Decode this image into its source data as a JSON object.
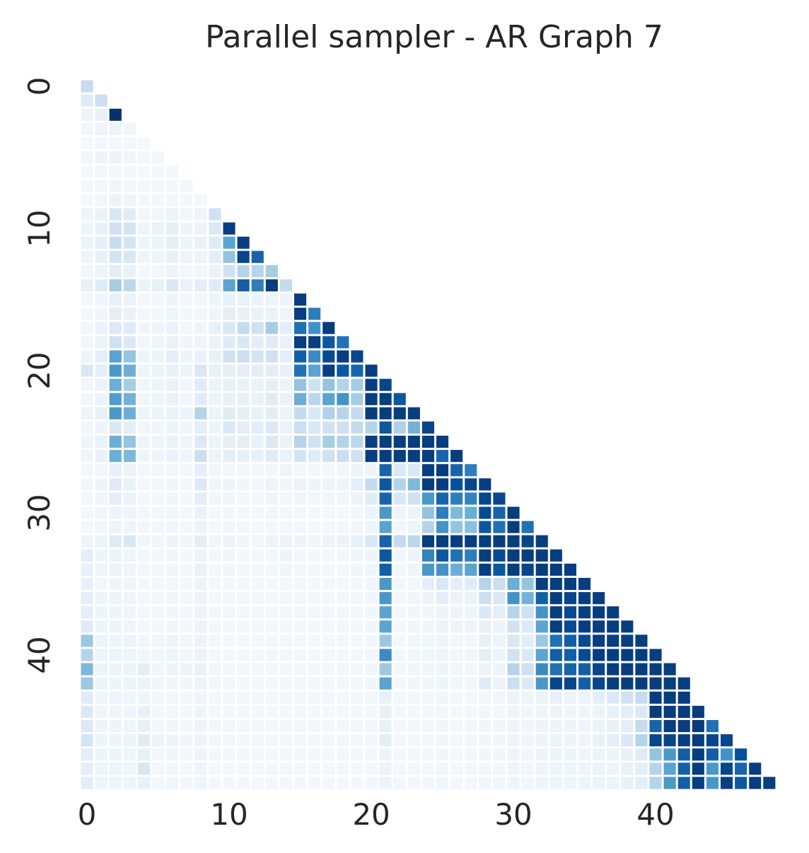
{
  "chart_data": {
    "type": "heatmap",
    "title": "Parallel sampler - AR Graph 7",
    "xlabel": "",
    "ylabel": "",
    "n": 49,
    "mask": "lower-triangle including diagonal",
    "colormap": "Blues",
    "color_range": [
      0,
      1
    ],
    "x_ticks": [
      0,
      10,
      20,
      30,
      40
    ],
    "y_ticks": [
      0,
      10,
      20,
      30,
      40
    ],
    "grid": false,
    "legend": "none",
    "colors": {
      "background": "#ffffff",
      "cell_gap": "#ffffff",
      "text": "#262626",
      "blues_scale": [
        "#f7fbff",
        "#deebf7",
        "#c6dbef",
        "#9ecae1",
        "#6baed6",
        "#4292c6",
        "#2171b5",
        "#08519c",
        "#08306b"
      ]
    },
    "rows": [
      [
        0.25
      ],
      [
        0.12,
        0.22
      ],
      [
        0.06,
        0.08,
        1.0
      ],
      [
        0.04,
        0.05,
        0.06,
        0.04
      ],
      [
        0.02,
        0.03,
        0.03,
        0.03,
        0.02
      ],
      [
        0.04,
        0.05,
        0.06,
        0.05,
        0.03,
        0.03
      ],
      [
        0.02,
        0.03,
        0.03,
        0.03,
        0.02,
        0.02,
        0.03
      ],
      [
        0.03,
        0.04,
        0.05,
        0.04,
        0.03,
        0.03,
        0.03,
        0.03
      ],
      [
        0.03,
        0.04,
        0.06,
        0.05,
        0.03,
        0.03,
        0.04,
        0.03,
        0.03
      ],
      [
        0.05,
        0.07,
        0.16,
        0.12,
        0.04,
        0.04,
        0.06,
        0.04,
        0.05,
        0.2
      ],
      [
        0.05,
        0.08,
        0.2,
        0.18,
        0.05,
        0.07,
        0.09,
        0.05,
        0.06,
        0.14,
        0.95
      ],
      [
        0.06,
        0.09,
        0.24,
        0.18,
        0.05,
        0.06,
        0.1,
        0.05,
        0.07,
        0.12,
        0.55,
        0.95
      ],
      [
        0.05,
        0.08,
        0.18,
        0.16,
        0.05,
        0.05,
        0.08,
        0.05,
        0.06,
        0.1,
        0.4,
        0.92,
        0.8
      ],
      [
        0.04,
        0.05,
        0.1,
        0.08,
        0.03,
        0.03,
        0.05,
        0.03,
        0.04,
        0.07,
        0.2,
        0.3,
        0.3,
        0.35
      ],
      [
        0.08,
        0.12,
        0.35,
        0.28,
        0.06,
        0.08,
        0.14,
        0.07,
        0.1,
        0.12,
        0.55,
        0.82,
        0.7,
        0.95,
        0.25
      ],
      [
        0.03,
        0.04,
        0.08,
        0.06,
        0.03,
        0.03,
        0.05,
        0.03,
        0.04,
        0.05,
        0.08,
        0.07,
        0.06,
        0.06,
        0.05,
        0.95
      ],
      [
        0.03,
        0.04,
        0.1,
        0.07,
        0.03,
        0.03,
        0.05,
        0.03,
        0.04,
        0.05,
        0.1,
        0.08,
        0.08,
        0.07,
        0.05,
        0.95,
        0.7
      ],
      [
        0.04,
        0.06,
        0.14,
        0.12,
        0.04,
        0.05,
        0.07,
        0.04,
        0.05,
        0.08,
        0.16,
        0.25,
        0.2,
        0.35,
        0.1,
        0.75,
        0.62,
        0.95
      ],
      [
        0.04,
        0.06,
        0.2,
        0.14,
        0.04,
        0.05,
        0.07,
        0.04,
        0.05,
        0.07,
        0.12,
        0.15,
        0.1,
        0.12,
        0.07,
        0.95,
        0.95,
        0.85,
        0.75
      ],
      [
        0.05,
        0.1,
        0.55,
        0.4,
        0.05,
        0.06,
        0.1,
        0.05,
        0.07,
        0.08,
        0.2,
        0.22,
        0.18,
        0.2,
        0.1,
        0.82,
        0.65,
        0.9,
        0.95,
        0.92
      ],
      [
        0.15,
        0.1,
        0.6,
        0.5,
        0.05,
        0.06,
        0.08,
        0.05,
        0.15,
        0.08,
        0.1,
        0.1,
        0.1,
        0.1,
        0.08,
        0.75,
        0.55,
        0.95,
        0.85,
        0.8,
        0.95
      ],
      [
        0.04,
        0.06,
        0.5,
        0.35,
        0.04,
        0.05,
        0.07,
        0.04,
        0.12,
        0.06,
        0.08,
        0.07,
        0.07,
        0.1,
        0.06,
        0.4,
        0.2,
        0.4,
        0.3,
        0.35,
        0.95,
        0.92
      ],
      [
        0.04,
        0.06,
        0.58,
        0.48,
        0.04,
        0.05,
        0.07,
        0.04,
        0.12,
        0.06,
        0.08,
        0.08,
        0.07,
        0.12,
        0.07,
        0.5,
        0.28,
        0.55,
        0.62,
        0.35,
        0.95,
        0.95,
        0.85
      ],
      [
        0.05,
        0.08,
        0.6,
        0.5,
        0.05,
        0.05,
        0.07,
        0.05,
        0.3,
        0.06,
        0.12,
        0.1,
        0.08,
        0.1,
        0.06,
        0.25,
        0.15,
        0.32,
        0.3,
        0.25,
        0.95,
        0.95,
        0.95,
        0.95
      ],
      [
        0.04,
        0.05,
        0.14,
        0.1,
        0.04,
        0.04,
        0.05,
        0.04,
        0.1,
        0.05,
        0.14,
        0.1,
        0.1,
        0.14,
        0.06,
        0.22,
        0.15,
        0.2,
        0.2,
        0.25,
        0.3,
        0.85,
        0.32,
        0.48,
        0.92
      ],
      [
        0.05,
        0.07,
        0.5,
        0.4,
        0.05,
        0.05,
        0.07,
        0.05,
        0.14,
        0.06,
        0.1,
        0.1,
        0.08,
        0.14,
        0.07,
        0.3,
        0.2,
        0.35,
        0.3,
        0.28,
        0.95,
        0.95,
        0.95,
        0.95,
        0.95,
        0.95
      ],
      [
        0.05,
        0.07,
        0.5,
        0.45,
        0.05,
        0.05,
        0.07,
        0.05,
        0.22,
        0.06,
        0.1,
        0.08,
        0.08,
        0.12,
        0.07,
        0.18,
        0.12,
        0.2,
        0.22,
        0.2,
        0.95,
        0.95,
        0.95,
        0.95,
        0.95,
        0.8,
        0.95
      ],
      [
        0.03,
        0.04,
        0.08,
        0.06,
        0.03,
        0.03,
        0.04,
        0.03,
        0.1,
        0.04,
        0.04,
        0.03,
        0.03,
        0.04,
        0.05,
        0.03,
        0.03,
        0.03,
        0.04,
        0.05,
        0.05,
        0.8,
        0.15,
        0.15,
        0.95,
        0.95,
        0.8,
        0.7
      ],
      [
        0.04,
        0.05,
        0.12,
        0.08,
        0.03,
        0.03,
        0.04,
        0.03,
        0.14,
        0.04,
        0.05,
        0.04,
        0.04,
        0.06,
        0.04,
        0.06,
        0.05,
        0.06,
        0.05,
        0.1,
        0.25,
        0.85,
        0.3,
        0.45,
        0.95,
        0.95,
        0.88,
        0.92,
        0.95
      ],
      [
        0.03,
        0.04,
        0.1,
        0.06,
        0.03,
        0.03,
        0.04,
        0.03,
        0.1,
        0.04,
        0.04,
        0.03,
        0.03,
        0.05,
        0.03,
        0.04,
        0.03,
        0.04,
        0.04,
        0.06,
        0.12,
        0.8,
        0.15,
        0.2,
        0.6,
        0.8,
        0.7,
        0.68,
        0.92,
        0.92
      ],
      [
        0.03,
        0.04,
        0.06,
        0.05,
        0.03,
        0.03,
        0.04,
        0.03,
        0.08,
        0.03,
        0.04,
        0.03,
        0.03,
        0.04,
        0.03,
        0.03,
        0.03,
        0.03,
        0.03,
        0.04,
        0.06,
        0.6,
        0.05,
        0.06,
        0.4,
        0.7,
        0.45,
        0.5,
        0.9,
        0.8,
        0.95
      ],
      [
        0.03,
        0.04,
        0.06,
        0.05,
        0.03,
        0.03,
        0.04,
        0.03,
        0.06,
        0.03,
        0.04,
        0.03,
        0.03,
        0.03,
        0.03,
        0.03,
        0.03,
        0.03,
        0.03,
        0.04,
        0.05,
        0.55,
        0.04,
        0.05,
        0.3,
        0.62,
        0.4,
        0.42,
        0.85,
        0.75,
        0.95,
        0.75
      ],
      [
        0.05,
        0.06,
        0.12,
        0.15,
        0.04,
        0.04,
        0.05,
        0.04,
        0.1,
        0.04,
        0.05,
        0.04,
        0.04,
        0.06,
        0.06,
        0.05,
        0.04,
        0.05,
        0.06,
        0.08,
        0.15,
        0.8,
        0.25,
        0.28,
        0.95,
        0.95,
        0.95,
        0.95,
        0.95,
        0.95,
        0.95,
        0.92,
        0.95
      ],
      [
        0.1,
        0.05,
        0.06,
        0.05,
        0.03,
        0.03,
        0.04,
        0.03,
        0.06,
        0.03,
        0.04,
        0.03,
        0.03,
        0.04,
        0.05,
        0.03,
        0.03,
        0.03,
        0.03,
        0.04,
        0.05,
        0.85,
        0.04,
        0.05,
        0.68,
        0.85,
        0.75,
        0.7,
        0.95,
        0.9,
        0.95,
        0.95,
        0.95,
        0.95
      ],
      [
        0.08,
        0.05,
        0.06,
        0.05,
        0.03,
        0.03,
        0.04,
        0.03,
        0.08,
        0.03,
        0.04,
        0.03,
        0.03,
        0.04,
        0.04,
        0.03,
        0.03,
        0.03,
        0.03,
        0.04,
        0.05,
        0.82,
        0.04,
        0.05,
        0.6,
        0.62,
        0.5,
        0.55,
        0.95,
        0.85,
        0.95,
        0.92,
        0.95,
        0.95,
        0.95
      ],
      [
        0.08,
        0.04,
        0.05,
        0.05,
        0.03,
        0.03,
        0.04,
        0.03,
        0.06,
        0.03,
        0.03,
        0.03,
        0.03,
        0.03,
        0.04,
        0.03,
        0.03,
        0.03,
        0.03,
        0.03,
        0.04,
        0.6,
        0.03,
        0.04,
        0.1,
        0.15,
        0.1,
        0.12,
        0.3,
        0.22,
        0.5,
        0.4,
        0.95,
        0.95,
        0.95,
        0.95
      ],
      [
        0.1,
        0.05,
        0.05,
        0.05,
        0.03,
        0.03,
        0.04,
        0.03,
        0.06,
        0.03,
        0.03,
        0.03,
        0.03,
        0.03,
        0.03,
        0.03,
        0.03,
        0.03,
        0.03,
        0.03,
        0.04,
        0.6,
        0.03,
        0.04,
        0.05,
        0.1,
        0.06,
        0.06,
        0.22,
        0.15,
        0.62,
        0.48,
        0.82,
        0.95,
        0.92,
        0.95,
        0.95
      ],
      [
        0.1,
        0.05,
        0.05,
        0.05,
        0.03,
        0.03,
        0.04,
        0.03,
        0.06,
        0.03,
        0.03,
        0.03,
        0.03,
        0.03,
        0.03,
        0.03,
        0.03,
        0.03,
        0.03,
        0.03,
        0.04,
        0.55,
        0.03,
        0.04,
        0.04,
        0.06,
        0.05,
        0.05,
        0.14,
        0.1,
        0.3,
        0.2,
        0.62,
        0.95,
        0.9,
        0.95,
        0.95,
        0.95
      ],
      [
        0.12,
        0.05,
        0.05,
        0.05,
        0.03,
        0.03,
        0.04,
        0.03,
        0.06,
        0.03,
        0.03,
        0.03,
        0.03,
        0.03,
        0.03,
        0.03,
        0.03,
        0.03,
        0.03,
        0.03,
        0.04,
        0.55,
        0.03,
        0.04,
        0.04,
        0.06,
        0.05,
        0.05,
        0.08,
        0.06,
        0.2,
        0.14,
        0.55,
        0.95,
        0.9,
        0.95,
        0.95,
        0.95,
        0.95
      ],
      [
        0.38,
        0.06,
        0.05,
        0.06,
        0.04,
        0.04,
        0.05,
        0.04,
        0.06,
        0.03,
        0.03,
        0.03,
        0.03,
        0.03,
        0.03,
        0.03,
        0.03,
        0.03,
        0.03,
        0.03,
        0.04,
        0.38,
        0.03,
        0.04,
        0.04,
        0.05,
        0.04,
        0.04,
        0.08,
        0.05,
        0.16,
        0.1,
        0.38,
        0.75,
        0.82,
        0.9,
        0.95,
        0.95,
        0.95,
        0.95
      ],
      [
        0.3,
        0.06,
        0.06,
        0.06,
        0.04,
        0.04,
        0.05,
        0.04,
        0.06,
        0.03,
        0.03,
        0.03,
        0.03,
        0.03,
        0.03,
        0.03,
        0.03,
        0.03,
        0.03,
        0.03,
        0.04,
        0.65,
        0.03,
        0.04,
        0.04,
        0.05,
        0.04,
        0.04,
        0.1,
        0.06,
        0.2,
        0.15,
        0.55,
        0.82,
        0.82,
        0.9,
        0.95,
        0.95,
        0.95,
        0.95,
        0.95
      ],
      [
        0.45,
        0.06,
        0.06,
        0.06,
        0.1,
        0.04,
        0.05,
        0.05,
        0.08,
        0.04,
        0.03,
        0.03,
        0.03,
        0.03,
        0.03,
        0.03,
        0.03,
        0.03,
        0.03,
        0.03,
        0.04,
        0.38,
        0.03,
        0.04,
        0.04,
        0.05,
        0.04,
        0.04,
        0.06,
        0.05,
        0.3,
        0.2,
        0.65,
        0.75,
        0.8,
        0.82,
        0.92,
        0.95,
        0.95,
        0.95,
        0.95,
        0.95
      ],
      [
        0.38,
        0.06,
        0.05,
        0.06,
        0.06,
        0.04,
        0.04,
        0.04,
        0.06,
        0.03,
        0.03,
        0.03,
        0.03,
        0.03,
        0.03,
        0.03,
        0.03,
        0.03,
        0.03,
        0.03,
        0.04,
        0.55,
        0.03,
        0.04,
        0.04,
        0.05,
        0.04,
        0.04,
        0.12,
        0.06,
        0.22,
        0.14,
        0.6,
        0.92,
        0.92,
        0.82,
        0.92,
        0.95,
        0.95,
        0.95,
        0.95,
        0.95,
        0.95
      ],
      [
        0.12,
        0.05,
        0.05,
        0.05,
        0.06,
        0.03,
        0.04,
        0.03,
        0.05,
        0.03,
        0.03,
        0.03,
        0.03,
        0.03,
        0.03,
        0.03,
        0.03,
        0.03,
        0.03,
        0.03,
        0.03,
        0.08,
        0.03,
        0.03,
        0.03,
        0.04,
        0.03,
        0.03,
        0.04,
        0.04,
        0.06,
        0.05,
        0.06,
        0.08,
        0.06,
        0.06,
        0.1,
        0.14,
        0.2,
        0.25,
        0.95,
        0.95,
        0.95
      ],
      [
        0.14,
        0.05,
        0.05,
        0.05,
        0.08,
        0.03,
        0.04,
        0.03,
        0.05,
        0.03,
        0.03,
        0.03,
        0.03,
        0.03,
        0.03,
        0.03,
        0.03,
        0.03,
        0.03,
        0.03,
        0.03,
        0.08,
        0.03,
        0.03,
        0.03,
        0.04,
        0.03,
        0.03,
        0.04,
        0.04,
        0.05,
        0.04,
        0.05,
        0.06,
        0.05,
        0.05,
        0.06,
        0.08,
        0.1,
        0.14,
        0.95,
        0.95,
        0.95,
        0.95
      ],
      [
        0.14,
        0.05,
        0.05,
        0.05,
        0.08,
        0.03,
        0.04,
        0.03,
        0.05,
        0.03,
        0.03,
        0.03,
        0.03,
        0.03,
        0.03,
        0.03,
        0.03,
        0.03,
        0.03,
        0.03,
        0.03,
        0.08,
        0.03,
        0.03,
        0.03,
        0.04,
        0.03,
        0.03,
        0.04,
        0.04,
        0.05,
        0.04,
        0.05,
        0.06,
        0.05,
        0.05,
        0.06,
        0.08,
        0.1,
        0.25,
        0.8,
        0.95,
        0.95,
        0.95,
        0.75
      ],
      [
        0.18,
        0.05,
        0.05,
        0.06,
        0.12,
        0.06,
        0.05,
        0.04,
        0.05,
        0.03,
        0.03,
        0.03,
        0.03,
        0.03,
        0.03,
        0.03,
        0.03,
        0.03,
        0.03,
        0.03,
        0.03,
        0.1,
        0.03,
        0.03,
        0.03,
        0.04,
        0.03,
        0.03,
        0.04,
        0.04,
        0.05,
        0.04,
        0.05,
        0.06,
        0.05,
        0.05,
        0.08,
        0.1,
        0.15,
        0.3,
        0.92,
        0.92,
        0.95,
        0.95,
        0.92,
        0.92
      ],
      [
        0.1,
        0.05,
        0.05,
        0.05,
        0.08,
        0.03,
        0.04,
        0.03,
        0.05,
        0.03,
        0.03,
        0.03,
        0.03,
        0.03,
        0.03,
        0.03,
        0.03,
        0.03,
        0.03,
        0.03,
        0.03,
        0.06,
        0.03,
        0.03,
        0.03,
        0.04,
        0.03,
        0.03,
        0.04,
        0.04,
        0.05,
        0.04,
        0.05,
        0.05,
        0.05,
        0.05,
        0.06,
        0.06,
        0.08,
        0.12,
        0.4,
        0.6,
        0.82,
        0.95,
        0.82,
        0.62,
        0.88
      ],
      [
        0.1,
        0.05,
        0.05,
        0.05,
        0.16,
        0.03,
        0.04,
        0.03,
        0.05,
        0.03,
        0.03,
        0.03,
        0.03,
        0.03,
        0.03,
        0.03,
        0.03,
        0.03,
        0.03,
        0.03,
        0.03,
        0.06,
        0.03,
        0.03,
        0.03,
        0.04,
        0.03,
        0.03,
        0.04,
        0.04,
        0.05,
        0.04,
        0.05,
        0.05,
        0.05,
        0.05,
        0.06,
        0.06,
        0.08,
        0.1,
        0.3,
        0.55,
        0.82,
        0.95,
        0.6,
        0.92,
        0.8,
        0.95
      ],
      [
        0.1,
        0.05,
        0.05,
        0.05,
        0.08,
        0.03,
        0.04,
        0.03,
        0.05,
        0.03,
        0.03,
        0.03,
        0.03,
        0.03,
        0.03,
        0.03,
        0.03,
        0.03,
        0.03,
        0.03,
        0.03,
        0.06,
        0.03,
        0.03,
        0.03,
        0.04,
        0.03,
        0.03,
        0.04,
        0.04,
        0.05,
        0.04,
        0.05,
        0.05,
        0.05,
        0.05,
        0.06,
        0.06,
        0.08,
        0.1,
        0.3,
        0.6,
        0.82,
        0.95,
        0.6,
        0.95,
        0.85,
        0.95,
        0.95
      ]
    ]
  }
}
